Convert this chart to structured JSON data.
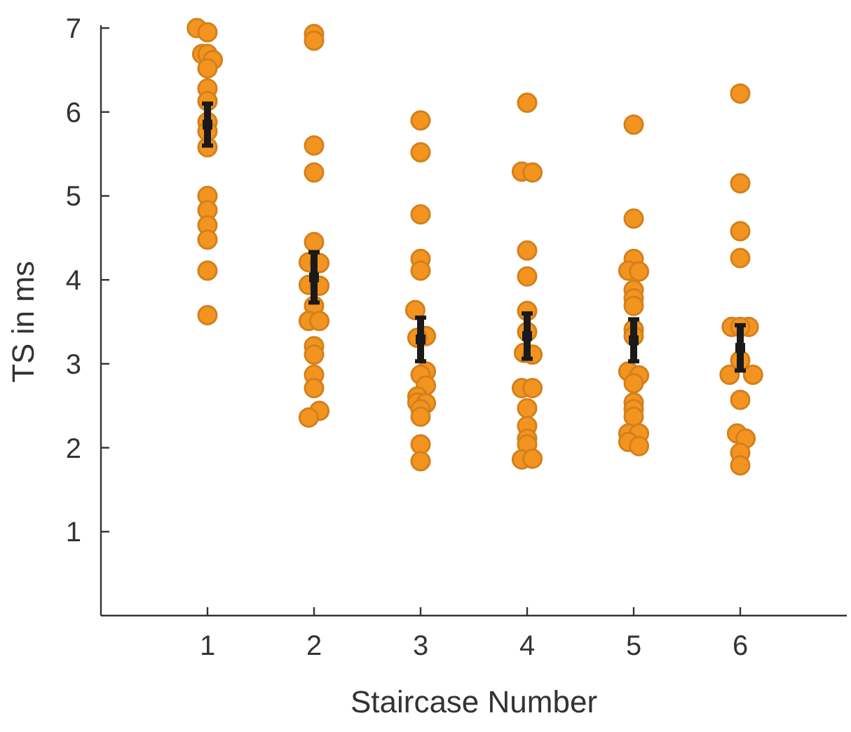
{
  "chart_data": {
    "type": "scatter",
    "xlabel": "Staircase Number",
    "ylabel": "TS in ms",
    "xlim": [
      0,
      7
    ],
    "xticks": [
      1,
      2,
      3,
      4,
      5,
      6
    ],
    "ylim": [
      0,
      7
    ],
    "yticks": [
      1,
      2,
      3,
      4,
      5,
      6,
      7
    ],
    "marker": "circle",
    "series": [
      {
        "color": "#f39420",
        "x": [
          0.9,
          1,
          0.95,
          1,
          1.05,
          1,
          1,
          1,
          1,
          1,
          1,
          1,
          1,
          1,
          1,
          1,
          1,
          2,
          2,
          2,
          2,
          2,
          1.95,
          2.05,
          1.95,
          2.05,
          2,
          1.95,
          2.05,
          2,
          2,
          2,
          2,
          2.05,
          1.95,
          3,
          3,
          3,
          3,
          3,
          2.95,
          3.05,
          2.97,
          3.05,
          3,
          3.05,
          2.97,
          2.97,
          3.05,
          3,
          3,
          3,
          3,
          4,
          3.95,
          4.05,
          4,
          4,
          4,
          4,
          3.97,
          4.05,
          3.95,
          4.05,
          4,
          4,
          4,
          4,
          3.95,
          4.05,
          5,
          5,
          5,
          4.95,
          5.05,
          5,
          5,
          5,
          5,
          5,
          4.95,
          5.05,
          5,
          5,
          5,
          5,
          4.95,
          5.05,
          4.95,
          5.05,
          6,
          6,
          6,
          6,
          5.92,
          6.08,
          6,
          6,
          5.9,
          6.12,
          6,
          5.97,
          6.05,
          6,
          6
        ],
        "values": [
          7.0,
          6.95,
          6.69,
          6.69,
          6.62,
          6.52,
          6.28,
          6.13,
          5.88,
          5.77,
          5.58,
          5.0,
          4.83,
          4.65,
          4.48,
          4.11,
          3.58,
          6.93,
          6.85,
          5.6,
          5.28,
          4.45,
          4.21,
          4.2,
          3.94,
          3.93,
          3.69,
          3.51,
          3.51,
          3.21,
          3.11,
          2.87,
          2.71,
          2.44,
          2.36,
          5.9,
          5.52,
          4.78,
          4.25,
          4.11,
          3.64,
          3.33,
          3.31,
          2.91,
          2.87,
          2.74,
          2.61,
          2.54,
          2.53,
          2.46,
          2.37,
          2.04,
          1.84,
          6.11,
          5.29,
          5.28,
          4.35,
          4.04,
          3.63,
          3.38,
          3.13,
          3.11,
          2.71,
          2.71,
          2.47,
          2.26,
          2.11,
          2.04,
          1.86,
          1.87,
          5.85,
          4.73,
          4.25,
          4.11,
          4.1,
          3.88,
          3.78,
          3.69,
          3.41,
          3.33,
          2.91,
          2.86,
          2.77,
          2.54,
          2.46,
          2.37,
          2.17,
          2.17,
          2.07,
          2.02,
          6.22,
          5.15,
          4.58,
          4.26,
          3.44,
          3.44,
          3.44,
          3.04,
          2.87,
          2.87,
          2.57,
          2.17,
          2.11,
          1.94,
          1.79
        ]
      },
      {
        "marker": "square",
        "color": "#1a1a1a",
        "x": [
          1,
          2,
          3,
          4,
          5,
          6
        ],
        "values": [
          5.85,
          4.03,
          3.29,
          3.33,
          3.28,
          3.19
        ],
        "errors": [
          0.25,
          0.3,
          0.26,
          0.27,
          0.25,
          0.27
        ]
      }
    ]
  }
}
